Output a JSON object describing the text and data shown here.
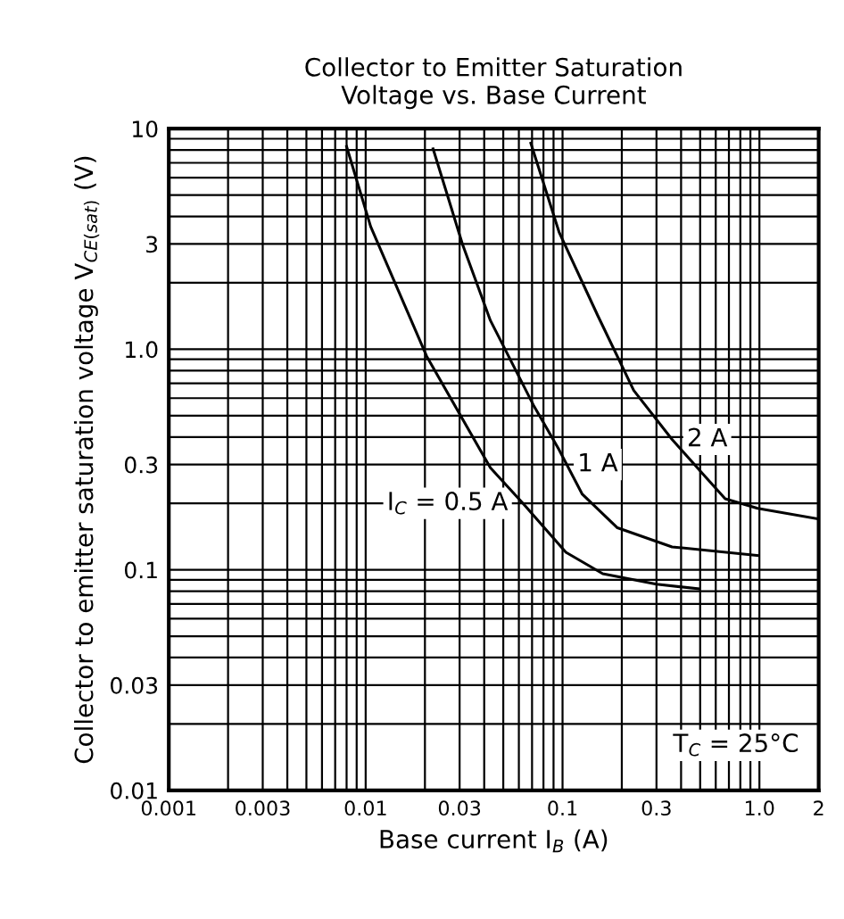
{
  "chart_data": {
    "type": "line",
    "title": "Collector to Emitter Saturation\nVoltage vs. Base Current",
    "xlabel": "Base current I$_{B}$ (A)",
    "ylabel": "Collector to emitter saturation voltage V$_{CE(sat)}$ (V)",
    "log": "xy",
    "xlim": [
      0.001,
      2
    ],
    "ylim": [
      0.01,
      10
    ],
    "xticks": [
      {
        "value": 0.001,
        "label": "0.001"
      },
      {
        "value": 0.002,
        "label": null
      },
      {
        "value": 0.003,
        "label": "0.003"
      },
      {
        "value": 0.004,
        "label": null
      },
      {
        "value": 0.005,
        "label": null
      },
      {
        "value": 0.006,
        "label": null
      },
      {
        "value": 0.007,
        "label": null
      },
      {
        "value": 0.008,
        "label": null
      },
      {
        "value": 0.009,
        "label": null
      },
      {
        "value": 0.01,
        "label": "0.01"
      },
      {
        "value": 0.02,
        "label": null
      },
      {
        "value": 0.03,
        "label": "0.03"
      },
      {
        "value": 0.04,
        "label": null
      },
      {
        "value": 0.05,
        "label": null
      },
      {
        "value": 0.06,
        "label": null
      },
      {
        "value": 0.07,
        "label": null
      },
      {
        "value": 0.08,
        "label": null
      },
      {
        "value": 0.09,
        "label": null
      },
      {
        "value": 0.1,
        "label": "0.1"
      },
      {
        "value": 0.2,
        "label": null
      },
      {
        "value": 0.3,
        "label": "0.3"
      },
      {
        "value": 0.4,
        "label": null
      },
      {
        "value": 0.5,
        "label": null
      },
      {
        "value": 0.6,
        "label": null
      },
      {
        "value": 0.7,
        "label": null
      },
      {
        "value": 0.8,
        "label": null
      },
      {
        "value": 0.9,
        "label": null
      },
      {
        "value": 1,
        "label": "1.0"
      },
      {
        "value": 2,
        "label": "2"
      }
    ],
    "yticks": [
      {
        "value": 0.01,
        "label": "0.01"
      },
      {
        "value": 0.02,
        "label": null
      },
      {
        "value": 0.03,
        "label": "0.03"
      },
      {
        "value": 0.04,
        "label": null
      },
      {
        "value": 0.05,
        "label": null
      },
      {
        "value": 0.06,
        "label": null
      },
      {
        "value": 0.07,
        "label": null
      },
      {
        "value": 0.08,
        "label": null
      },
      {
        "value": 0.09,
        "label": null
      },
      {
        "value": 0.1,
        "label": "0.1"
      },
      {
        "value": 0.2,
        "label": null
      },
      {
        "value": 0.3,
        "label": "0.3"
      },
      {
        "value": 0.4,
        "label": null
      },
      {
        "value": 0.5,
        "label": null
      },
      {
        "value": 0.6,
        "label": null
      },
      {
        "value": 0.7,
        "label": null
      },
      {
        "value": 0.8,
        "label": null
      },
      {
        "value": 0.9,
        "label": null
      },
      {
        "value": 1,
        "label": "1.0"
      },
      {
        "value": 2,
        "label": null
      },
      {
        "value": 3,
        "label": "3"
      },
      {
        "value": 4,
        "label": null
      },
      {
        "value": 5,
        "label": null
      },
      {
        "value": 6,
        "label": null
      },
      {
        "value": 7,
        "label": null
      },
      {
        "value": 8,
        "label": null
      },
      {
        "value": 9,
        "label": null
      },
      {
        "value": 10,
        "label": "10"
      }
    ],
    "grid": true,
    "line_style": "solid",
    "marker": "none",
    "series": [
      {
        "color": "#000000",
        "x": [
          0.008,
          0.0106,
          0.0204,
          0.043,
          0.063,
          0.104,
          0.16,
          0.3,
          0.49
        ],
        "values": [
          8.3,
          3.6,
          0.93,
          0.29,
          0.2,
          0.12,
          0.096,
          0.086,
          0.082
        ]
      },
      {
        "color": "#000000",
        "x": [
          0.022,
          0.031,
          0.043,
          0.071,
          0.096,
          0.126,
          0.19,
          0.36,
          0.98
        ],
        "values": [
          8.1,
          3.0,
          1.35,
          0.56,
          0.35,
          0.22,
          0.155,
          0.127,
          0.116
        ]
      },
      {
        "color": "#000000",
        "x": [
          0.069,
          0.096,
          0.151,
          0.23,
          0.36,
          0.52,
          0.67,
          0.98,
          2.0
        ],
        "values": [
          8.6,
          3.4,
          1.42,
          0.65,
          0.39,
          0.27,
          0.21,
          0.19,
          0.17
        ]
      }
    ],
    "annotations": [
      {
        "text": "I$_{C}$ = 0.5 A",
        "x": 0.063,
        "y": 0.2
      },
      {
        "text": "1 A",
        "x": 0.1,
        "y": 0.3
      },
      {
        "text": "2 A",
        "x": 0.36,
        "y": 0.39
      },
      "T$_{C}$ = 25°C"
    ]
  }
}
